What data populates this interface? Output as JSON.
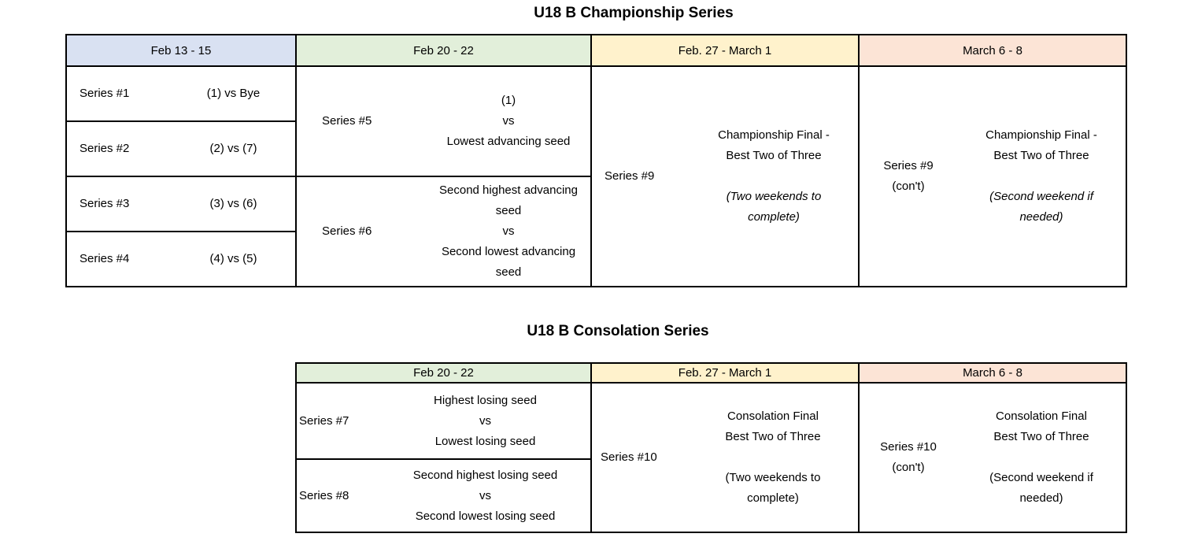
{
  "championship": {
    "title": "U18 B Championship Series",
    "headers": [
      {
        "label": "Feb 13 - 15",
        "color": "#d9e1f2"
      },
      {
        "label": "Feb 20 - 22",
        "color": "#e2efda"
      },
      {
        "label": "Feb. 27 - March 1",
        "color": "#fff2cc"
      },
      {
        "label": "March 6 - 8",
        "color": "#fce4d6"
      }
    ],
    "round1": [
      {
        "label": "Series #1",
        "matchup": "(1) vs Bye"
      },
      {
        "label": "Series #2",
        "matchup": "(2) vs (7)"
      },
      {
        "label": "Series #3",
        "matchup": "(3) vs (6)"
      },
      {
        "label": "Series #4",
        "matchup": "(4) vs (5)"
      }
    ],
    "round2": [
      {
        "label": "Series #5",
        "matchup": "(1)\nvs\nLowest advancing seed"
      },
      {
        "label": "Series #6",
        "matchup": "Second highest advancing\nseed\nvs\nSecond lowest advancing\nseed"
      }
    ],
    "final": {
      "label": "Series #9",
      "main": "Championship Final -\nBest Two of Three",
      "note": "(Two weekends to\ncomplete)"
    },
    "final_cont": {
      "label": "Series #9\n(con't)",
      "main": "Championship Final -\nBest Two of Three",
      "note": "(Second weekend if\nneeded)"
    }
  },
  "consolation": {
    "title": "U18 B Consolation Series",
    "headers": [
      {
        "label": "Feb 20 - 22",
        "color": "#e2efda"
      },
      {
        "label": "Feb. 27 - March 1",
        "color": "#fff2cc"
      },
      {
        "label": "March 6 - 8",
        "color": "#fce4d6"
      }
    ],
    "series": [
      {
        "label": "Series #7",
        "matchup": "Highest losing seed\nvs\nLowest losing seed"
      },
      {
        "label": "Series #8",
        "matchup": "Second highest losing seed\nvs\nSecond lowest losing seed"
      }
    ],
    "final": {
      "label": "Series #10",
      "main": "Consolation Final\nBest Two of Three",
      "note": "(Two weekends to\ncomplete)"
    },
    "final_cont": {
      "label": "Series #10\n(con't)",
      "main": "Consolation Final\nBest Two of Three",
      "note": "(Second weekend if\nneeded)"
    }
  }
}
